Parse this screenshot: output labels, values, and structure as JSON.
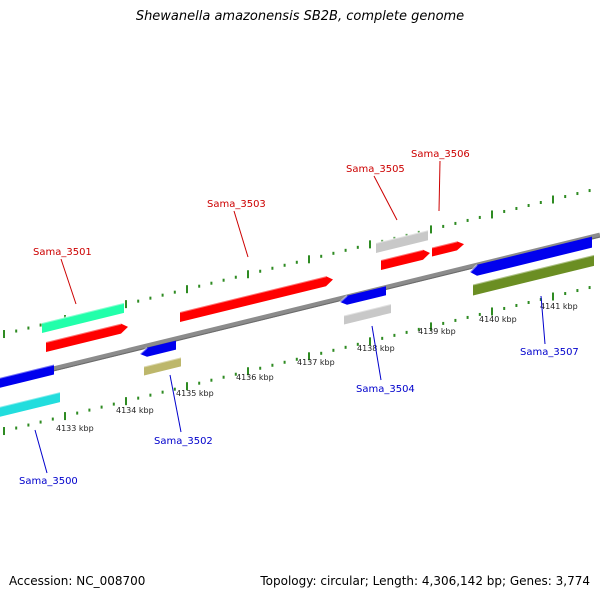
{
  "title": "Shewanella amazonensis SB2B, complete genome",
  "footer": {
    "accession": "Accession: NC_008700",
    "summary": "Topology: circular; Length: 4,306,142 bp; Genes: 3,774"
  },
  "colors": {
    "background": "#ffffff",
    "backbone": "#8c8c8c",
    "tick": "#2e8b22",
    "forward_label": "#cc0000",
    "reverse_label": "#0000cc",
    "gene_red": "#ff0000",
    "gene_blue": "#0000ee",
    "gene_cyan": "#22dddd",
    "gene_spring_green": "#22ffaa",
    "gene_gray": "#c8c8c8",
    "gene_khaki": "#bdb76b",
    "gene_olive": "#6b8e23"
  },
  "kbp_markers": [
    "4133 kbp",
    "4134 kbp",
    "4135 kbp",
    "4136 kbp",
    "4137 kbp",
    "4138 kbp",
    "4139 kbp",
    "4140 kbp",
    "4141 kbp"
  ],
  "genes": [
    {
      "name": "Sama_3500",
      "strand": "reverse"
    },
    {
      "name": "Sama_3501",
      "strand": "forward"
    },
    {
      "name": "Sama_3502",
      "strand": "reverse"
    },
    {
      "name": "Sama_3503",
      "strand": "forward"
    },
    {
      "name": "Sama_3504",
      "strand": "reverse"
    },
    {
      "name": "Sama_3505",
      "strand": "forward"
    },
    {
      "name": "Sama_3506",
      "strand": "forward"
    },
    {
      "name": "Sama_3507",
      "strand": "reverse"
    }
  ]
}
